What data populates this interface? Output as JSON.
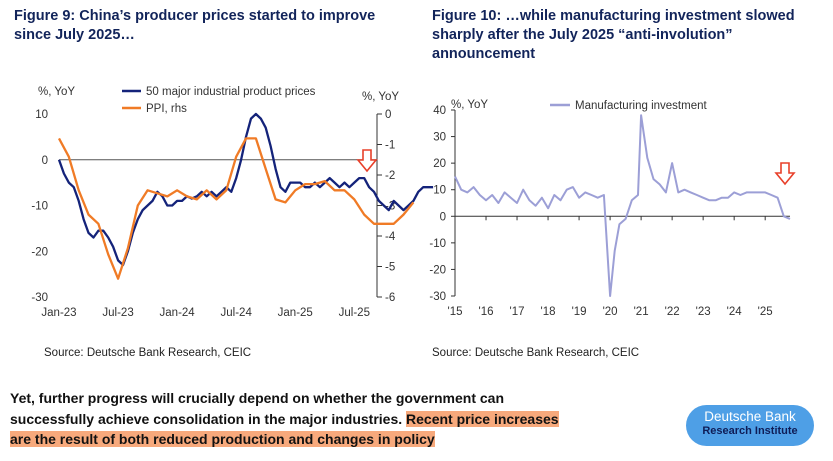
{
  "figure9": {
    "title": "Figure 9: China’s producer prices started to improve since July 2025…",
    "source": "Source: Deutsche Bank Research, CEIC"
  },
  "figure10": {
    "title": "Figure 10: …while manufacturing investment slowed sharply after the July 2025 “anti-involution” announcement",
    "source": "Source: Deutsche Bank Research, CEIC"
  },
  "body": {
    "text_plain": "Yet, further progress will crucially depend on whether the government can successfully achieve consolidation in the major industries. ",
    "text_highlight": "Recent price increases are the result of both reduced production and changes in policy"
  },
  "logo": {
    "line1": "Deutsche Bank",
    "line2": "Research Institute"
  },
  "colors": {
    "navy": "#14237a",
    "orange": "#f07b26",
    "lavender": "#9c9fd6",
    "red_arrow": "#e8402a",
    "highlight": "#f7a97c",
    "logo_blue": "#4e9fe6"
  },
  "chart_data": [
    {
      "type": "line",
      "title": "",
      "ylabel_left": "%, YoY",
      "ylabel_right": "%, YoY",
      "ylim_left": [
        -30,
        10
      ],
      "ylim_right": [
        -6,
        0
      ],
      "yticks_left": [
        "10",
        "0",
        "-10",
        "-20",
        "-30"
      ],
      "yticks_right": [
        "0",
        "-1",
        "-2",
        "-3",
        "-4",
        "-5",
        "-6"
      ],
      "x_range": [
        "2023-01",
        "2025-09"
      ],
      "xticks": [
        "Jan-23",
        "Jul-23",
        "Jan-24",
        "Jul-24",
        "Jan-25",
        "Jul-25"
      ],
      "legend_position": "top",
      "annotation": "down-arrow",
      "series": [
        {
          "name": "50 major industrial product prices",
          "axis": "left",
          "color": "#14237a",
          "points": [
            [
              0,
              0
            ],
            [
              0.5,
              -3
            ],
            [
              1,
              -5
            ],
            [
              1.5,
              -6
            ],
            [
              2,
              -9
            ],
            [
              2.5,
              -13
            ],
            [
              3,
              -16
            ],
            [
              3.5,
              -17
            ],
            [
              4,
              -15.5
            ],
            [
              4.5,
              -15.5
            ],
            [
              5,
              -17
            ],
            [
              5.5,
              -19
            ],
            [
              6,
              -22
            ],
            [
              6.5,
              -23
            ],
            [
              7,
              -20
            ],
            [
              7.5,
              -16
            ],
            [
              8,
              -13
            ],
            [
              8.5,
              -11
            ],
            [
              9,
              -10
            ],
            [
              9.5,
              -9
            ],
            [
              10,
              -7
            ],
            [
              10.5,
              -8
            ],
            [
              11,
              -10
            ],
            [
              11.5,
              -10
            ],
            [
              12,
              -9
            ],
            [
              12.5,
              -9
            ],
            [
              13,
              -8
            ],
            [
              13.5,
              -8.5
            ],
            [
              14,
              -8
            ],
            [
              14.5,
              -7
            ],
            [
              15,
              -8
            ],
            [
              15.5,
              -7
            ],
            [
              16,
              -8
            ],
            [
              16.5,
              -7
            ],
            [
              17,
              -6
            ],
            [
              17.5,
              -7
            ],
            [
              18,
              -4
            ],
            [
              18.5,
              0
            ],
            [
              19,
              5
            ],
            [
              19.5,
              9
            ],
            [
              20,
              10
            ],
            [
              20.5,
              9
            ],
            [
              21,
              7
            ],
            [
              21.5,
              3
            ],
            [
              22,
              -2
            ],
            [
              22.5,
              -6
            ],
            [
              23,
              -7
            ],
            [
              23.5,
              -5
            ],
            [
              24,
              -5
            ],
            [
              24.5,
              -5
            ],
            [
              25,
              -6
            ],
            [
              25.5,
              -6
            ],
            [
              26,
              -5
            ],
            [
              26.5,
              -6
            ],
            [
              27,
              -5
            ],
            [
              27.5,
              -4
            ],
            [
              28,
              -5
            ],
            [
              28.5,
              -6
            ],
            [
              29,
              -5
            ],
            [
              29.5,
              -6
            ],
            [
              30,
              -5
            ],
            [
              30.5,
              -4
            ],
            [
              31,
              -4
            ],
            [
              31.5,
              -6
            ],
            [
              32,
              -7
            ],
            [
              32.5,
              -9
            ],
            [
              33,
              -10
            ],
            [
              33.5,
              -11
            ],
            [
              34,
              -9
            ],
            [
              34.5,
              -10
            ],
            [
              35,
              -11
            ],
            [
              35.5,
              -10
            ],
            [
              36,
              -9
            ],
            [
              36.5,
              -7
            ],
            [
              37,
              -6
            ],
            [
              37.5,
              -6
            ],
            [
              38,
              -6
            ]
          ]
        },
        {
          "name": "PPI, rhs",
          "axis": "right",
          "color": "#f07b26",
          "points": [
            [
              0,
              -0.8
            ],
            [
              1,
              -1.4
            ],
            [
              2,
              -2.5
            ],
            [
              3,
              -3.3
            ],
            [
              4,
              -3.6
            ],
            [
              5,
              -4.6
            ],
            [
              6,
              -5.4
            ],
            [
              7,
              -4.4
            ],
            [
              8,
              -3.0
            ],
            [
              9,
              -2.5
            ],
            [
              10,
              -2.6
            ],
            [
              11,
              -2.7
            ],
            [
              12,
              -2.5
            ],
            [
              13,
              -2.7
            ],
            [
              14,
              -2.8
            ],
            [
              15,
              -2.5
            ],
            [
              16,
              -2.8
            ],
            [
              17,
              -2.5
            ],
            [
              18,
              -1.4
            ],
            [
              19,
              -0.8
            ],
            [
              20,
              -0.8
            ],
            [
              21,
              -1.8
            ],
            [
              22,
              -2.8
            ],
            [
              23,
              -2.9
            ],
            [
              24,
              -2.5
            ],
            [
              25,
              -2.3
            ],
            [
              26,
              -2.3
            ],
            [
              27,
              -2.2
            ],
            [
              28,
              -2.5
            ],
            [
              29,
              -2.5
            ],
            [
              30,
              -2.8
            ],
            [
              31,
              -3.3
            ],
            [
              32,
              -3.6
            ],
            [
              33,
              -3.6
            ],
            [
              34,
              -3.6
            ],
            [
              35,
              -3.3
            ],
            [
              36,
              -2.9
            ]
          ]
        }
      ]
    },
    {
      "type": "line",
      "title": "",
      "ylabel": "%, YoY",
      "ylim": [
        -30,
        40
      ],
      "yticks": [
        "40",
        "30",
        "20",
        "10",
        "0",
        "-10",
        "-20",
        "-30"
      ],
      "x_range": [
        2015.0,
        2025.8
      ],
      "xticks": [
        "'15",
        "'16",
        "'17",
        "'18",
        "'19",
        "'20",
        "'21",
        "'22",
        "'23",
        "'24",
        "'25"
      ],
      "legend_position": "top",
      "annotation": "down-arrow",
      "series": [
        {
          "name": "Manufacturing investment",
          "color": "#9c9fd6",
          "points": [
            [
              2015.0,
              15
            ],
            [
              2015.2,
              10
            ],
            [
              2015.4,
              9
            ],
            [
              2015.6,
              11
            ],
            [
              2015.8,
              8
            ],
            [
              2016.0,
              6
            ],
            [
              2016.2,
              8
            ],
            [
              2016.4,
              5
            ],
            [
              2016.6,
              9
            ],
            [
              2016.8,
              7
            ],
            [
              2017.0,
              5
            ],
            [
              2017.2,
              10
            ],
            [
              2017.4,
              6
            ],
            [
              2017.6,
              4
            ],
            [
              2017.8,
              7
            ],
            [
              2018.0,
              3
            ],
            [
              2018.2,
              8
            ],
            [
              2018.4,
              6
            ],
            [
              2018.6,
              10
            ],
            [
              2018.8,
              11
            ],
            [
              2019.0,
              7
            ],
            [
              2019.2,
              9
            ],
            [
              2019.4,
              8
            ],
            [
              2019.6,
              7
            ],
            [
              2019.8,
              8
            ],
            [
              2020.0,
              -30
            ],
            [
              2020.15,
              -13
            ],
            [
              2020.3,
              -3
            ],
            [
              2020.5,
              -1
            ],
            [
              2020.7,
              6
            ],
            [
              2020.9,
              8
            ],
            [
              2021.0,
              38
            ],
            [
              2021.2,
              22
            ],
            [
              2021.4,
              14
            ],
            [
              2021.6,
              12
            ],
            [
              2021.8,
              9
            ],
            [
              2022.0,
              20
            ],
            [
              2022.2,
              9
            ],
            [
              2022.4,
              10
            ],
            [
              2022.6,
              9
            ],
            [
              2022.8,
              8
            ],
            [
              2023.0,
              7
            ],
            [
              2023.2,
              6
            ],
            [
              2023.4,
              6
            ],
            [
              2023.6,
              7
            ],
            [
              2023.8,
              7
            ],
            [
              2024.0,
              9
            ],
            [
              2024.2,
              8
            ],
            [
              2024.4,
              9
            ],
            [
              2024.6,
              9
            ],
            [
              2024.8,
              9
            ],
            [
              2025.0,
              9
            ],
            [
              2025.2,
              8
            ],
            [
              2025.4,
              7
            ],
            [
              2025.6,
              0
            ],
            [
              2025.8,
              -1
            ]
          ]
        }
      ]
    }
  ]
}
